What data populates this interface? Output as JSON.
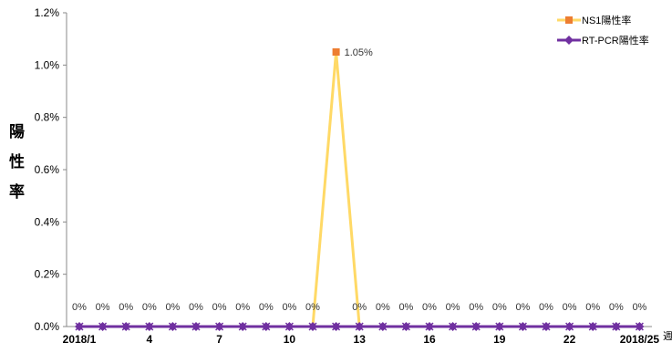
{
  "chart_data": {
    "type": "line",
    "ylabel": "陽性率",
    "xlabel": "週",
    "yticks": [
      "0.0%",
      "0.2%",
      "0.4%",
      "0.6%",
      "0.8%",
      "1.0%",
      "1.2%"
    ],
    "ylim": [
      0,
      1.2
    ],
    "x_tick_labels": [
      {
        "week": 1,
        "label": "2018/1"
      },
      {
        "week": 4,
        "label": "4"
      },
      {
        "week": 7,
        "label": "7"
      },
      {
        "week": 10,
        "label": "10"
      },
      {
        "week": 13,
        "label": "13"
      },
      {
        "week": 16,
        "label": "16"
      },
      {
        "week": 19,
        "label": "19"
      },
      {
        "week": 22,
        "label": "22"
      },
      {
        "week": 25,
        "label": "2018/25"
      }
    ],
    "x": [
      1,
      2,
      3,
      4,
      5,
      6,
      7,
      8,
      9,
      10,
      11,
      12,
      13,
      14,
      15,
      16,
      17,
      18,
      19,
      20,
      21,
      22,
      23,
      24,
      25
    ],
    "series": [
      {
        "name": "NS1陽性率",
        "color": "#FFD966",
        "marker_color": "#ED7D31",
        "values": [
          0,
          0,
          0,
          0,
          0,
          0,
          0,
          0,
          0,
          0,
          0,
          1.05,
          0,
          0,
          0,
          0,
          0,
          0,
          0,
          0,
          0,
          0,
          0,
          0,
          0
        ],
        "data_labels": [
          "0%",
          "0%",
          "0%",
          "0%",
          "0%",
          "0%",
          "0%",
          "0%",
          "0%",
          "0%",
          "0%",
          "1.05%",
          "0%",
          "0%",
          "0%",
          "0%",
          "0%",
          "0%",
          "0%",
          "0%",
          "0%",
          "0%",
          "0%",
          "0%",
          "0%"
        ]
      },
      {
        "name": "RT-PCR陽性率",
        "color": "#7030A0",
        "marker_color": "#7030A0",
        "values": [
          0,
          0,
          0,
          0,
          0,
          0,
          0,
          0,
          0,
          0,
          0,
          0,
          0,
          0,
          0,
          0,
          0,
          0,
          0,
          0,
          0,
          0,
          0,
          0,
          0
        ]
      }
    ],
    "legend_position": "top-right",
    "grid": false
  }
}
